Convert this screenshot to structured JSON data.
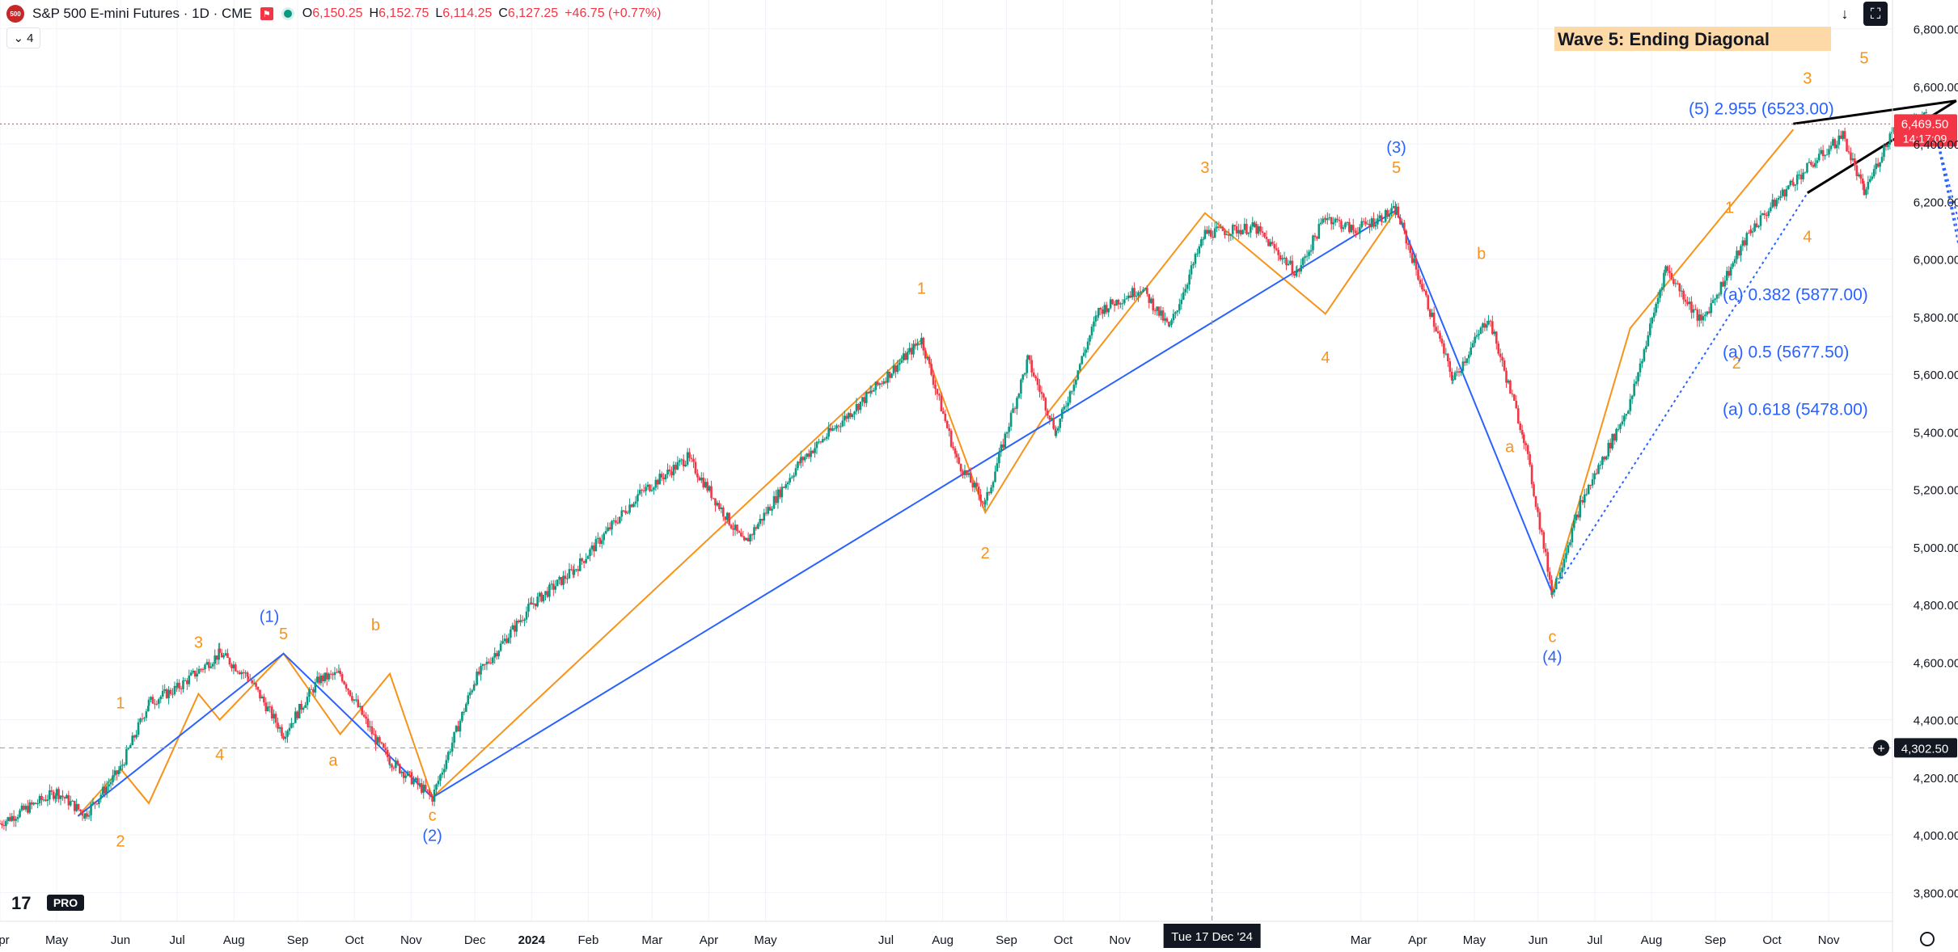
{
  "header": {
    "symbol_badge": "500",
    "title": "S&P 500 E-mini Futures · 1D · CME",
    "flag_icon": "flag-icon",
    "open": "6,150.25",
    "high": "6,152.75",
    "low": "6,114.25",
    "close": "6,127.25",
    "change": "+46.75 (+0.77%)",
    "o_label": "O",
    "h_label": "H",
    "l_label": "L",
    "c_label": "C",
    "indicators_count": "4"
  },
  "colors": {
    "up": "#089981",
    "down": "#f23645",
    "wave_orange": "#f7931a",
    "wave_blue": "#2962ff",
    "grid": "#f0f3fa",
    "price_tag": "#f23645",
    "crosshair_tag": "#131722"
  },
  "watermark": "PRO",
  "wave_title": "Wave 5: Ending Diagonal",
  "price_tag": {
    "price": "6,469.50",
    "countdown": "14:17:09"
  },
  "crosshair": {
    "price": "4,302.50",
    "date": "Tue 17 Dec '24"
  },
  "chart_data": {
    "type": "candlestick",
    "ylim": [
      3700,
      6900
    ],
    "y_ticks": [
      {
        "v": 3800,
        "label": "3,800.00"
      },
      {
        "v": 4000,
        "label": "4,000.00"
      },
      {
        "v": 4200,
        "label": "4,200.00"
      },
      {
        "v": 4400,
        "label": "4,400.00"
      },
      {
        "v": 4600,
        "label": "4,600.00"
      },
      {
        "v": 4800,
        "label": "4,800.00"
      },
      {
        "v": 5000,
        "label": "5,000.00"
      },
      {
        "v": 5200,
        "label": "5,200.00"
      },
      {
        "v": 5400,
        "label": "5,400.00"
      },
      {
        "v": 5600,
        "label": "5,600.00"
      },
      {
        "v": 5800,
        "label": "5,800.00"
      },
      {
        "v": 6000,
        "label": "6,000.00"
      },
      {
        "v": 6200,
        "label": "6,200.00"
      },
      {
        "v": 6400,
        "label": "6,400.00"
      },
      {
        "v": 6600,
        "label": "6,600.00"
      },
      {
        "v": 6800,
        "label": "6,800.00"
      }
    ],
    "x_months": [
      "Apr",
      "May",
      "Jun",
      "Jul",
      "Aug",
      "Sep",
      "Oct",
      "Nov",
      "Dec",
      "2024",
      "Feb",
      "Mar",
      "Apr",
      "May",
      "Jul",
      "Aug",
      "Sep",
      "Oct",
      "Nov",
      "Mar",
      "Apr",
      "May",
      "Jun",
      "Jul",
      "Aug",
      "Sep",
      "Oct",
      "Nov"
    ],
    "x_month_t": [
      2023.25,
      2023.33,
      2023.42,
      2023.5,
      2023.58,
      2023.67,
      2023.75,
      2023.83,
      2023.92,
      2024.0,
      2024.08,
      2024.17,
      2024.25,
      2024.33,
      2024.5,
      2024.58,
      2024.67,
      2024.75,
      2024.83,
      2025.17,
      2025.25,
      2025.33,
      2025.42,
      2025.5,
      2025.58,
      2025.67,
      2025.75,
      2025.83
    ],
    "x_range": [
      2023.25,
      2025.92
    ],
    "anchors": [
      [
        2023.25,
        4040
      ],
      [
        2023.33,
        4150
      ],
      [
        2023.37,
        4070
      ],
      [
        2023.42,
        4230
      ],
      [
        2023.46,
        4460
      ],
      [
        2023.5,
        4510
      ],
      [
        2023.56,
        4630
      ],
      [
        2023.6,
        4550
      ],
      [
        2023.65,
        4350
      ],
      [
        2023.7,
        4540
      ],
      [
        2023.73,
        4560
      ],
      [
        2023.78,
        4330
      ],
      [
        2023.8,
        4260
      ],
      [
        2023.86,
        4130
      ],
      [
        2023.92,
        4540
      ],
      [
        2024.0,
        4800
      ],
      [
        2024.06,
        4920
      ],
      [
        2024.15,
        5180
      ],
      [
        2024.22,
        5310
      ],
      [
        2024.3,
        5010
      ],
      [
        2024.38,
        5300
      ],
      [
        2024.48,
        5540
      ],
      [
        2024.55,
        5720
      ],
      [
        2024.6,
        5300
      ],
      [
        2024.64,
        5150
      ],
      [
        2024.7,
        5650
      ],
      [
        2024.74,
        5400
      ],
      [
        2024.8,
        5820
      ],
      [
        2024.86,
        5900
      ],
      [
        2024.9,
        5760
      ],
      [
        2024.95,
        6090
      ],
      [
        2025.02,
        6110
      ],
      [
        2025.08,
        5950
      ],
      [
        2025.12,
        6150
      ],
      [
        2025.16,
        6100
      ],
      [
        2025.22,
        6170
      ],
      [
        2025.3,
        5580
      ],
      [
        2025.35,
        5800
      ],
      [
        2025.4,
        5380
      ],
      [
        2025.44,
        4840
      ],
      [
        2025.48,
        5150
      ],
      [
        2025.55,
        5500
      ],
      [
        2025.6,
        5970
      ],
      [
        2025.65,
        5780
      ],
      [
        2025.72,
        6100
      ],
      [
        2025.78,
        6270
      ],
      [
        2025.85,
        6430
      ],
      [
        2025.88,
        6230
      ],
      [
        2025.92,
        6450
      ],
      [
        2025.97,
        6500
      ]
    ],
    "waves_orange": [
      [
        [
          2023.36,
          4065
        ],
        [
          2023.42,
          4230
        ],
        [
          2023.46,
          4110
        ],
        [
          2023.53,
          4490
        ],
        [
          2023.56,
          4400
        ],
        [
          2023.65,
          4630
        ],
        [
          2023.73,
          4350
        ],
        [
          2023.8,
          4560
        ],
        [
          2023.86,
          4130
        ]
      ],
      [
        [
          2023.86,
          4130
        ],
        [
          2024.55,
          5720
        ],
        [
          2024.64,
          5120
        ],
        [
          2024.72,
          5440
        ],
        [
          2024.95,
          6160
        ],
        [
          2025.12,
          5810
        ],
        [
          2025.22,
          6170
        ]
      ],
      [
        [
          2025.44,
          4840
        ],
        [
          2025.55,
          5760
        ],
        [
          2025.72,
          6270
        ],
        [
          2025.78,
          6450
        ]
      ]
    ],
    "waves_blue": [
      [
        [
          2023.36,
          4065
        ],
        [
          2023.65,
          4630
        ],
        [
          2023.86,
          4130
        ],
        [
          2025.22,
          6170
        ],
        [
          2025.44,
          4840
        ]
      ]
    ],
    "diagonal": {
      "upper": [
        [
          2025.78,
          6470
        ],
        [
          2026.01,
          6550
        ]
      ],
      "lower": [
        [
          2025.8,
          6230
        ],
        [
          2026.01,
          6550
        ]
      ]
    },
    "projections": [
      {
        "label": "(5) 2.955 (6523.00)",
        "value": 6523
      },
      {
        "label": "(a) 0.382 (5877.00)",
        "value": 5877
      },
      {
        "label": "(a) 0.5 (5677.50)",
        "value": 5677.5
      },
      {
        "label": "(a) 0.618 (5478.00)",
        "value": 5478
      }
    ],
    "wave_labels_orange": [
      {
        "t": 2023.42,
        "v": 4440,
        "text": "1"
      },
      {
        "t": 2023.42,
        "v": 3960,
        "text": "2"
      },
      {
        "t": 2023.53,
        "v": 4650,
        "text": "3"
      },
      {
        "t": 2023.56,
        "v": 4260,
        "text": "4"
      },
      {
        "t": 2023.65,
        "v": 4680,
        "text": "5"
      },
      {
        "t": 2023.72,
        "v": 4240,
        "text": "a"
      },
      {
        "t": 2023.78,
        "v": 4710,
        "text": "b"
      },
      {
        "t": 2023.86,
        "v": 4050,
        "text": "c"
      },
      {
        "t": 2024.55,
        "v": 5880,
        "text": "1"
      },
      {
        "t": 2024.64,
        "v": 4960,
        "text": "2"
      },
      {
        "t": 2024.95,
        "v": 6300,
        "text": "3"
      },
      {
        "t": 2025.12,
        "v": 5640,
        "text": "4"
      },
      {
        "t": 2025.22,
        "v": 6300,
        "text": "5"
      },
      {
        "t": 2025.38,
        "v": 5330,
        "text": "a"
      },
      {
        "t": 2025.34,
        "v": 6000,
        "text": "b"
      },
      {
        "t": 2025.44,
        "v": 4670,
        "text": "c"
      },
      {
        "t": 2025.69,
        "v": 6160,
        "text": "1"
      },
      {
        "t": 2025.7,
        "v": 5620,
        "text": "2"
      },
      {
        "t": 2025.8,
        "v": 6610,
        "text": "3"
      },
      {
        "t": 2025.8,
        "v": 6060,
        "text": "4"
      },
      {
        "t": 2025.88,
        "v": 6680,
        "text": "5"
      }
    ],
    "wave_labels_blue": [
      {
        "t": 2023.63,
        "v": 4740,
        "text": "(1)"
      },
      {
        "t": 2023.86,
        "v": 3980,
        "text": "(2)"
      },
      {
        "t": 2025.22,
        "v": 6370,
        "text": "(3)"
      },
      {
        "t": 2025.44,
        "v": 4600,
        "text": "(4)"
      }
    ]
  }
}
